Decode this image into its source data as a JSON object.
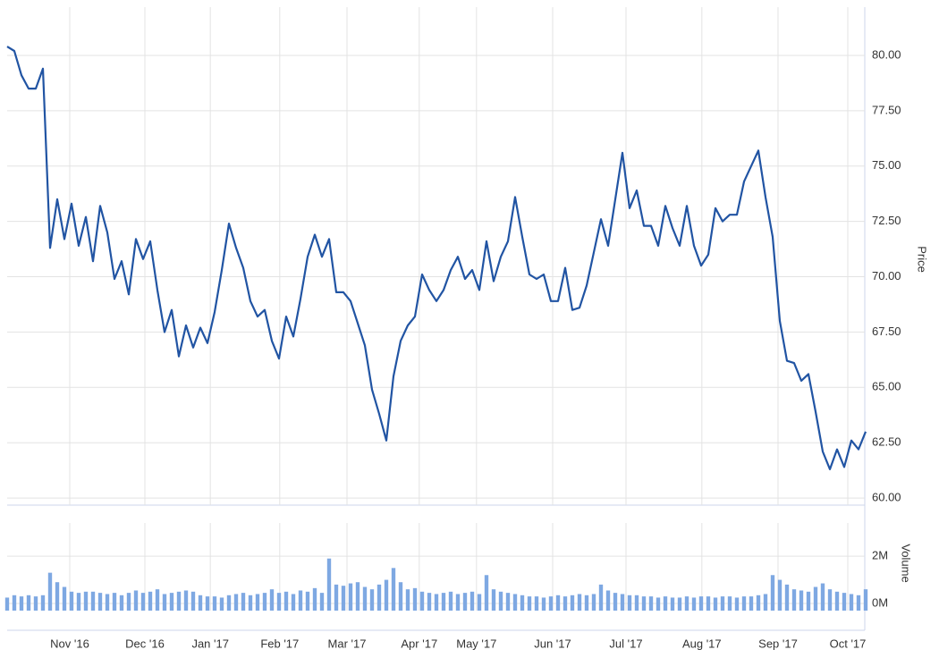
{
  "chart_data": [
    {
      "type": "line",
      "y_title": "Price",
      "color": "#2154a3",
      "xlim": [
        0,
        120
      ],
      "ylim": [
        59.68,
        82.18
      ],
      "yticks": [
        {
          "value": 60,
          "label": "60.00"
        },
        {
          "value": 62.5,
          "label": "62.50"
        },
        {
          "value": 65,
          "label": "65.00"
        },
        {
          "value": 67.5,
          "label": "67.50"
        },
        {
          "value": 70,
          "label": "70.00"
        },
        {
          "value": 72.5,
          "label": "72.50"
        },
        {
          "value": 75,
          "label": "75.00"
        },
        {
          "value": 77.5,
          "label": "77.50"
        },
        {
          "value": 80,
          "label": "80.00"
        }
      ],
      "grid": true,
      "values": [
        80.4,
        80.2,
        79.1,
        78.5,
        78.5,
        79.4,
        71.3,
        73.5,
        71.7,
        73.3,
        71.4,
        72.7,
        70.7,
        73.2,
        72.0,
        69.9,
        70.7,
        69.2,
        71.7,
        70.8,
        71.6,
        69.4,
        67.5,
        68.5,
        66.4,
        67.8,
        66.8,
        67.7,
        67.0,
        68.4,
        70.3,
        72.4,
        71.3,
        70.4,
        68.9,
        68.2,
        68.5,
        67.1,
        66.3,
        68.2,
        67.3,
        69.0,
        70.9,
        71.9,
        70.9,
        71.7,
        69.3,
        69.3,
        68.9,
        67.9,
        66.9,
        64.9,
        63.8,
        62.6,
        65.5,
        67.1,
        67.8,
        68.2,
        70.1,
        69.4,
        68.9,
        69.4,
        70.3,
        70.9,
        69.9,
        70.3,
        69.4,
        71.6,
        69.8,
        70.9,
        71.6,
        73.6,
        71.8,
        70.1,
        69.9,
        70.1,
        68.9,
        68.9,
        70.4,
        68.5,
        68.6,
        69.6,
        71.1,
        72.6,
        71.4,
        73.5,
        75.6,
        73.1,
        73.9,
        72.3,
        72.3,
        71.4,
        73.2,
        72.2,
        71.4,
        73.2,
        71.4,
        70.5,
        71.0,
        73.1,
        72.5,
        72.8,
        72.8,
        74.3,
        75.0,
        75.7,
        73.6,
        71.8,
        68.0,
        66.2,
        66.1,
        65.3,
        65.6,
        63.9,
        62.1,
        61.3,
        62.2,
        61.4,
        62.6,
        62.2,
        63.0
      ]
    },
    {
      "type": "bar",
      "y_title": "Volume",
      "color": "#7ea8e2",
      "xlim": [
        0,
        120
      ],
      "ylim": [
        -0.3,
        3.4
      ],
      "yticks": [
        {
          "value": 0,
          "label": "0M"
        },
        {
          "value": 2,
          "label": "2M"
        }
      ],
      "grid": true,
      "xticks": [
        {
          "value": 8.75,
          "label": "Nov '16"
        },
        {
          "value": 19.25,
          "label": "Dec '16"
        },
        {
          "value": 28.4,
          "label": "Jan '17"
        },
        {
          "value": 38.1,
          "label": "Feb '17"
        },
        {
          "value": 47.5,
          "label": "Mar '17"
        },
        {
          "value": 57.6,
          "label": "Apr '17"
        },
        {
          "value": 65.6,
          "label": "May '17"
        },
        {
          "value": 76.25,
          "label": "Jun '17"
        },
        {
          "value": 86.5,
          "label": "Jul '17"
        },
        {
          "value": 97.1,
          "label": "Aug '17"
        },
        {
          "value": 107.75,
          "label": "Sep '17"
        },
        {
          "value": 117.5,
          "label": "Oct '17"
        }
      ],
      "values": [
        0.25,
        0.35,
        0.3,
        0.35,
        0.3,
        0.35,
        1.3,
        0.9,
        0.7,
        0.5,
        0.45,
        0.5,
        0.5,
        0.45,
        0.4,
        0.45,
        0.35,
        0.45,
        0.55,
        0.45,
        0.5,
        0.6,
        0.4,
        0.45,
        0.5,
        0.55,
        0.5,
        0.35,
        0.3,
        0.3,
        0.25,
        0.35,
        0.4,
        0.45,
        0.35,
        0.4,
        0.45,
        0.6,
        0.45,
        0.5,
        0.4,
        0.55,
        0.5,
        0.65,
        0.45,
        1.9,
        0.8,
        0.75,
        0.85,
        0.9,
        0.7,
        0.6,
        0.8,
        1.0,
        1.5,
        0.9,
        0.6,
        0.65,
        0.5,
        0.45,
        0.4,
        0.45,
        0.5,
        0.4,
        0.45,
        0.5,
        0.4,
        1.2,
        0.6,
        0.5,
        0.45,
        0.4,
        0.35,
        0.3,
        0.3,
        0.25,
        0.3,
        0.35,
        0.3,
        0.35,
        0.4,
        0.35,
        0.4,
        0.8,
        0.55,
        0.45,
        0.4,
        0.35,
        0.35,
        0.3,
        0.3,
        0.25,
        0.3,
        0.25,
        0.25,
        0.3,
        0.25,
        0.3,
        0.3,
        0.25,
        0.3,
        0.3,
        0.25,
        0.3,
        0.3,
        0.35,
        0.4,
        1.2,
        1.0,
        0.8,
        0.6,
        0.55,
        0.5,
        0.7,
        0.85,
        0.6,
        0.5,
        0.45,
        0.4,
        0.35,
        0.6
      ]
    }
  ]
}
